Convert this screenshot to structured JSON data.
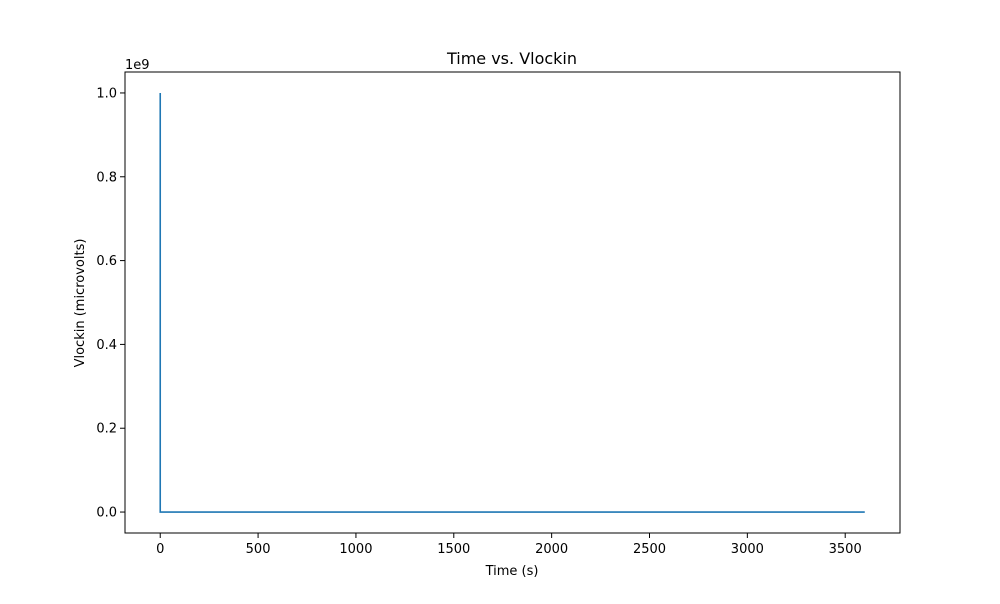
{
  "chart_data": {
    "type": "line",
    "title": "Time vs. Vlockin",
    "xlabel": "Time (s)",
    "ylabel": "Vlockin (microvolts)",
    "y_offset_label": "1e9",
    "xlim": [
      -180,
      3780
    ],
    "ylim": [
      -0.05,
      1.05
    ],
    "y_scale_factor": 1000000000,
    "x_ticks": [
      0,
      500,
      1000,
      1500,
      2000,
      2500,
      3000,
      3500
    ],
    "x_tick_labels": [
      "0",
      "500",
      "1000",
      "1500",
      "2000",
      "2500",
      "3000",
      "3500"
    ],
    "y_ticks": [
      0.0,
      0.2,
      0.4,
      0.6,
      0.8,
      1.0
    ],
    "y_tick_labels": [
      "0.0",
      "0.2",
      "0.4",
      "0.6",
      "0.8",
      "1.0"
    ],
    "grid": false,
    "legend": "none",
    "series": [
      {
        "color": "#1f77b4",
        "x": [
          0,
          0,
          3600
        ],
        "y": [
          1.0,
          0.0,
          0.0
        ]
      }
    ]
  }
}
